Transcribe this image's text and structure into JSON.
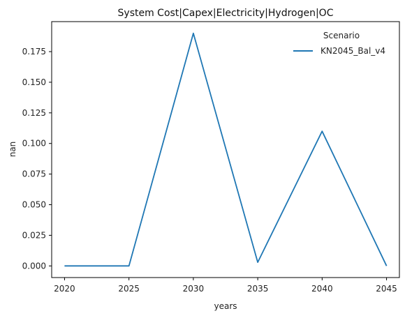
{
  "chart_data": {
    "type": "line",
    "title": "System Cost|Capex|Electricity|Hydrogen|OC",
    "xlabel": "years",
    "ylabel": "nan",
    "x": [
      2020,
      2025,
      2030,
      2035,
      2040,
      2045
    ],
    "xlim": [
      2019,
      2046
    ],
    "ylim": [
      -0.0095,
      0.1995
    ],
    "xticks": [
      "2020",
      "2025",
      "2030",
      "2035",
      "2040",
      "2045"
    ],
    "yticks": [
      "0.000",
      "0.025",
      "0.050",
      "0.075",
      "0.100",
      "0.125",
      "0.150",
      "0.175"
    ],
    "series": [
      {
        "name": "KN2045_Bal_v4",
        "color": "#1f77b4",
        "values": [
          0.0,
          0.0,
          0.19,
          0.003,
          0.11,
          0.0
        ]
      }
    ],
    "legend": {
      "title": "Scenario",
      "placement": "top-right"
    },
    "grid": false
  }
}
